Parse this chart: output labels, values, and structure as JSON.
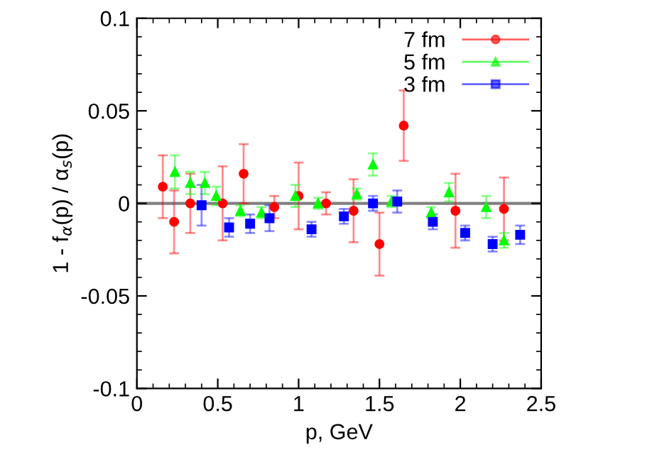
{
  "chart_data": {
    "type": "scatter",
    "xlabel": "p, GeV",
    "ylabel": "1 - f$_{α}$(p) / α$_{s}$(p)",
    "xlim": [
      0,
      2.5
    ],
    "ylim": [
      -0.1,
      0.1
    ],
    "xticks": [
      0,
      0.5,
      1,
      1.5,
      2,
      2.5
    ],
    "yticks": [
      -0.1,
      -0.05,
      0,
      0.05,
      0.1
    ],
    "legend": "top right",
    "grid": false,
    "ref_lines": [
      {
        "axis": "y",
        "value": 0,
        "color": "#808080",
        "line_style": "solid"
      }
    ],
    "series": [
      {
        "name": "7 fm",
        "color": "#ff0000",
        "marker": "circle",
        "x": [
          0.16,
          0.23,
          0.33,
          0.53,
          0.66,
          0.85,
          1.0,
          1.17,
          1.34,
          1.5,
          1.65,
          1.97,
          2.27
        ],
        "values": [
          0.009,
          -0.01,
          0.0,
          0.0,
          0.016,
          -0.002,
          0.004,
          0.0,
          -0.004,
          -0.022,
          0.042,
          -0.004,
          -0.003
        ],
        "errors": [
          0.017,
          0.017,
          0.016,
          0.02,
          0.016,
          0.006,
          0.018,
          0.006,
          0.017,
          0.017,
          0.019,
          0.02,
          0.017
        ]
      },
      {
        "name": "5 fm",
        "color": "#00ff00",
        "marker": "triangle",
        "x": [
          0.235,
          0.33,
          0.42,
          0.49,
          0.64,
          0.77,
          0.98,
          1.12,
          1.36,
          1.46,
          1.575,
          1.82,
          1.93,
          2.16,
          2.27
        ],
        "values": [
          0.017,
          0.011,
          0.011,
          0.004,
          -0.004,
          -0.005,
          0.004,
          0.0,
          0.005,
          0.021,
          0.001,
          -0.005,
          0.006,
          -0.002,
          -0.02
        ],
        "errors": [
          0.009,
          0.006,
          0.006,
          0.005,
          0.003,
          0.003,
          0.006,
          0.003,
          0.003,
          0.006,
          0.003,
          0.003,
          0.005,
          0.006,
          0.004
        ]
      },
      {
        "name": "3 fm",
        "color": "#0000ff",
        "marker": "square",
        "x": [
          0.4,
          0.57,
          0.7,
          0.82,
          1.08,
          1.28,
          1.46,
          1.61,
          1.83,
          2.03,
          2.2,
          2.37
        ],
        "values": [
          -0.001,
          -0.013,
          -0.011,
          -0.008,
          -0.014,
          -0.007,
          0.0,
          0.001,
          -0.01,
          -0.016,
          -0.022,
          -0.017
        ],
        "errors": [
          0.011,
          0.005,
          0.005,
          0.007,
          0.004,
          0.004,
          0.004,
          0.006,
          0.004,
          0.004,
          0.004,
          0.005
        ]
      }
    ]
  }
}
